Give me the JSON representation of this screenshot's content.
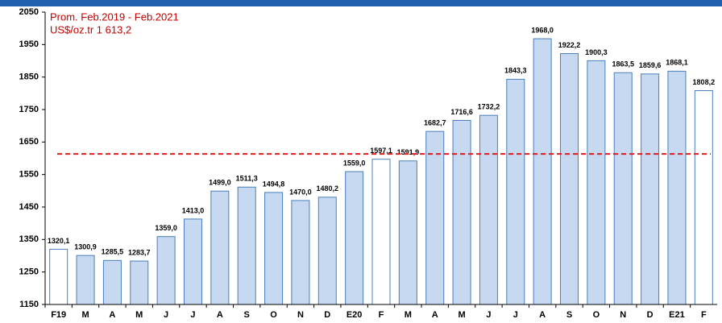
{
  "chart_data": {
    "type": "bar",
    "categories": [
      "F19",
      "M",
      "A",
      "M",
      "J",
      "J",
      "A",
      "S",
      "O",
      "N",
      "D",
      "E20",
      "F",
      "M",
      "A",
      "M",
      "J",
      "J",
      "A",
      "S",
      "O",
      "N",
      "D",
      "E21",
      "F"
    ],
    "values": [
      1320.1,
      1300.9,
      1285.5,
      1283.7,
      1359.0,
      1413.0,
      1499.0,
      1511.3,
      1494.8,
      1470.0,
      1480.2,
      1559.0,
      1597.1,
      1591.9,
      1682.7,
      1716.6,
      1732.2,
      1843.3,
      1968.0,
      1922.2,
      1900.3,
      1863.5,
      1859.6,
      1868.1,
      1808.2
    ],
    "value_labels": [
      "1320,1",
      "1300,9",
      "1285,5",
      "1283,7",
      "1359,0",
      "1413,0",
      "1499,0",
      "1511,3",
      "1494,8",
      "1470,0",
      "1480,2",
      "1559,0",
      "1597,1",
      "1591,9",
      "1682,7",
      "1716,6",
      "1732,2",
      "1843,3",
      "1968,0",
      "1922,2",
      "1900,3",
      "1863,5",
      "1859,6",
      "1868,1",
      "1808,2"
    ],
    "colors": [
      "#ffffff",
      "#c6d9f1",
      "#c6d9f1",
      "#c6d9f1",
      "#c6d9f1",
      "#c6d9f1",
      "#c6d9f1",
      "#c6d9f1",
      "#c6d9f1",
      "#c6d9f1",
      "#c6d9f1",
      "#c6d9f1",
      "#ffffff",
      "#c6d9f1",
      "#c6d9f1",
      "#c6d9f1",
      "#c6d9f1",
      "#c6d9f1",
      "#c6d9f1",
      "#c6d9f1",
      "#c6d9f1",
      "#c6d9f1",
      "#c6d9f1",
      "#c6d9f1",
      "#ffffff"
    ],
    "edge_color": "#4a7ebb",
    "ylim": [
      1150,
      2050
    ],
    "yticks": [
      1150,
      1250,
      1350,
      1450,
      1550,
      1650,
      1750,
      1850,
      1950,
      2050
    ],
    "grid": false,
    "reference_line": {
      "value": 1613.2,
      "color": "#e31a1c"
    },
    "annotations": [
      "Prom. Feb.2019 - Feb.2021",
      "US$/oz.tr 1 613,2"
    ]
  }
}
